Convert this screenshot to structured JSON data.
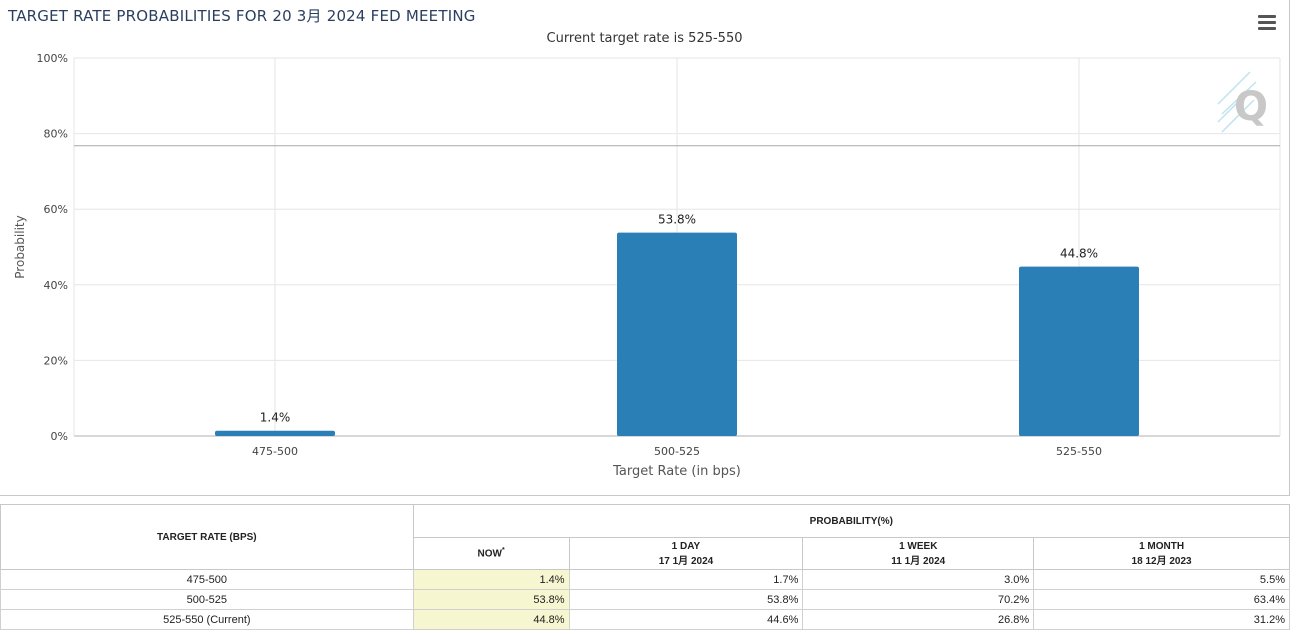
{
  "header": {
    "title": "TARGET RATE PROBABILITIES FOR 20 3月 2024 FED MEETING",
    "subtitle": "Current target rate is 525-550"
  },
  "colors": {
    "bar": "#2a7fb6",
    "grid": "#e6e6e6",
    "now_highlight": "#f6f6d0",
    "title": "#2a3f5f"
  },
  "icons": {
    "menu": "hamburger-menu-icon",
    "watermark": "quikstrike-q-logo"
  },
  "chart_data": {
    "type": "bar",
    "title": "TARGET RATE PROBABILITIES FOR 20 3月 2024 FED MEETING",
    "subtitle": "Current target rate is 525-550",
    "xlabel": "Target Rate (in bps)",
    "ylabel": "Probability",
    "categories": [
      "475-500",
      "500-525",
      "525-550"
    ],
    "values": [
      1.4,
      53.8,
      44.8
    ],
    "data_labels": [
      "1.4%",
      "53.8%",
      "44.8%"
    ],
    "ylim": [
      0,
      100
    ],
    "yticks": [
      "0%",
      "20%",
      "40%",
      "60%",
      "80%",
      "100%"
    ],
    "grid": true,
    "watermark_text": "Q"
  },
  "table": {
    "col_target": "TARGET RATE (BPS)",
    "col_prob": "PROBABILITY(%)",
    "periods": [
      {
        "label": "NOW",
        "mark": "*",
        "date": ""
      },
      {
        "label": "1 DAY",
        "mark": "",
        "date": "17 1月 2024"
      },
      {
        "label": "1 WEEK",
        "mark": "",
        "date": "11 1月 2024"
      },
      {
        "label": "1 MONTH",
        "mark": "",
        "date": "18 12月 2023"
      }
    ],
    "rows": [
      {
        "rate": "475-500",
        "values": [
          "1.4%",
          "1.7%",
          "3.0%",
          "5.5%"
        ]
      },
      {
        "rate": "500-525",
        "values": [
          "53.8%",
          "53.8%",
          "70.2%",
          "63.4%"
        ]
      },
      {
        "rate": "525-550 (Current)",
        "values": [
          "44.8%",
          "44.6%",
          "26.8%",
          "31.2%"
        ]
      }
    ]
  }
}
